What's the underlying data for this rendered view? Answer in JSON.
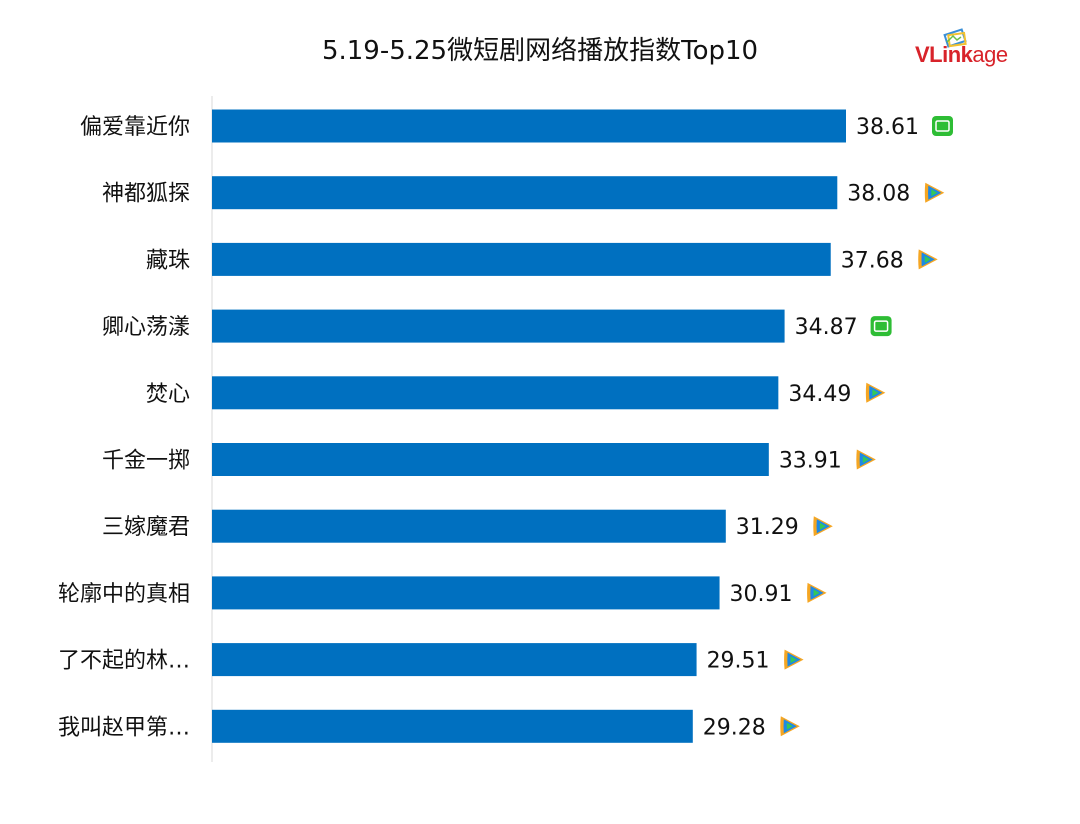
{
  "header": {
    "title": "5.19-5.25微短剧网络播放指数Top10",
    "logo_text_bold": "VLink",
    "logo_text_rest": "age"
  },
  "chart_data": {
    "type": "bar",
    "orientation": "horizontal",
    "title": "5.19-5.25微短剧网络播放指数Top10",
    "categories": [
      "偏爱靠近你",
      "神都狐探",
      "藏珠",
      "卿心荡漾",
      "焚心",
      "千金一掷",
      "三嫁魔君",
      "轮廓中的真相",
      "了不起的林…",
      "我叫赵甲第…"
    ],
    "values": [
      38.61,
      38.08,
      37.68,
      34.87,
      34.49,
      33.91,
      31.29,
      30.91,
      29.51,
      29.28
    ],
    "value_labels": [
      "38.61",
      "38.08",
      "37.68",
      "34.87",
      "34.49",
      "33.91",
      "31.29",
      "30.91",
      "29.51",
      "29.28"
    ],
    "platform_icons": [
      "iqiyi-icon",
      "tencent-video-icon",
      "tencent-video-icon",
      "iqiyi-icon",
      "tencent-video-icon",
      "tencent-video-icon",
      "tencent-video-icon",
      "tencent-video-icon",
      "tencent-video-icon",
      "tencent-video-icon"
    ],
    "xlim": [
      0,
      38.61
    ],
    "grid": false,
    "legend": false,
    "bar_color": "#0070c0"
  },
  "colors": {
    "bar": "#0070c0",
    "logo_red": "#d8232a",
    "iqiyi_green": "#2ebd35",
    "tencent_orange": "#f5a623",
    "tencent_blue": "#1e88e5",
    "tencent_green": "#34c759"
  }
}
